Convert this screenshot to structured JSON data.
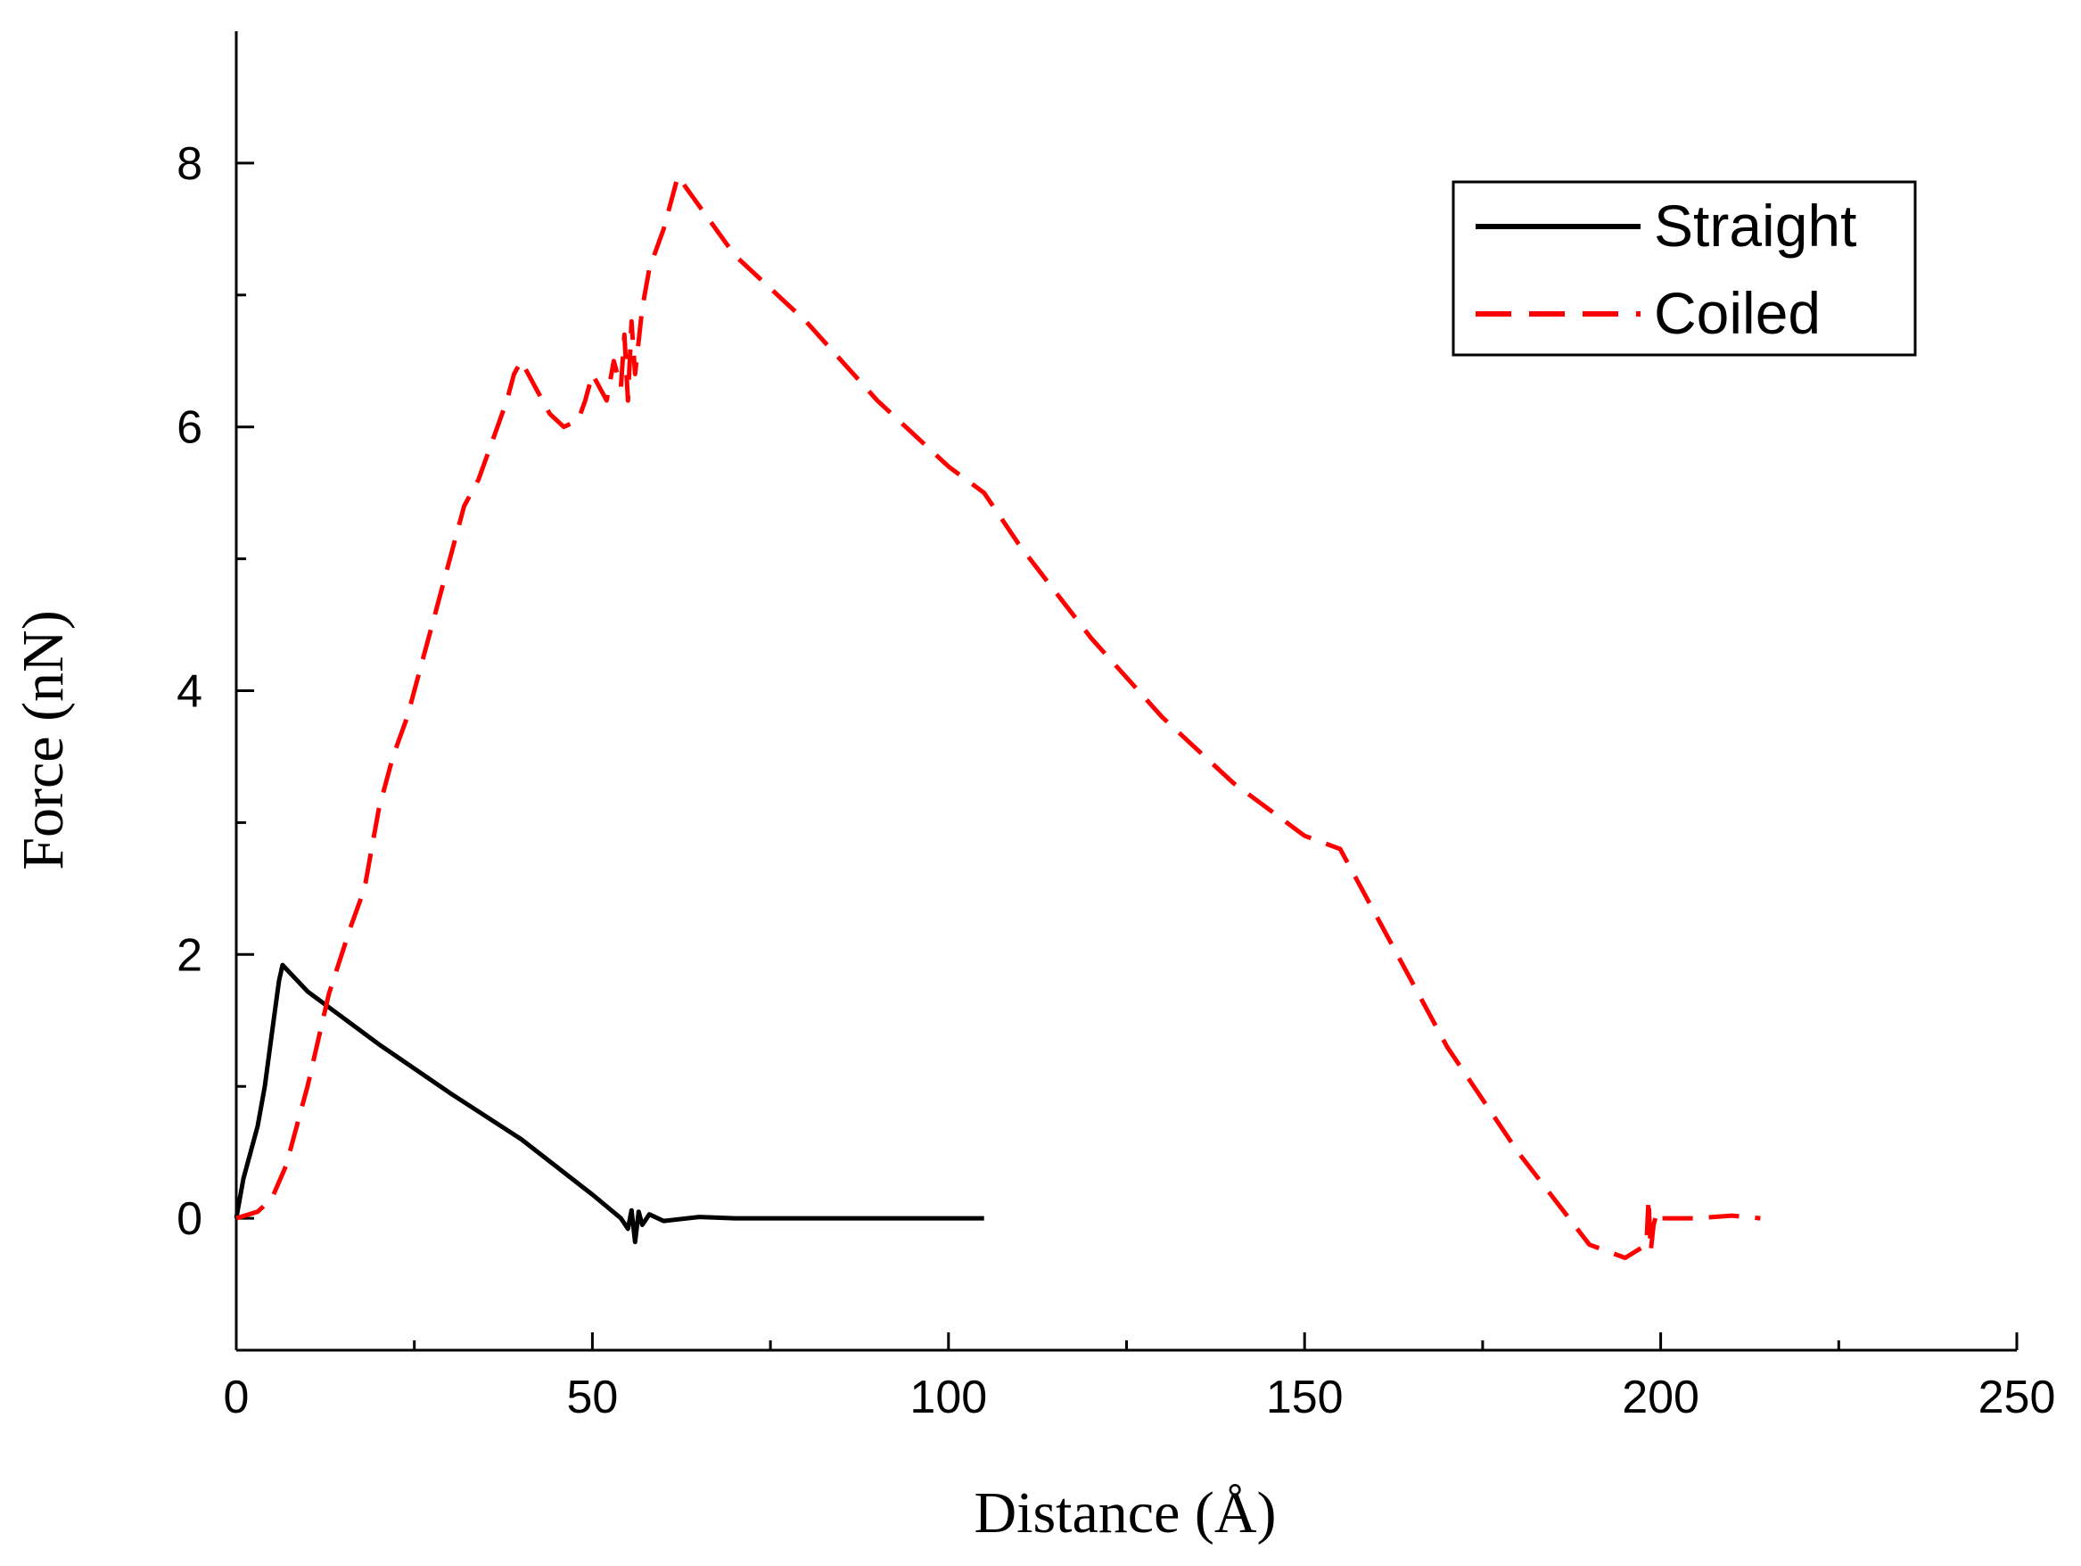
{
  "chart_data": {
    "type": "line",
    "title": "",
    "xlabel": "Distance (Å)",
    "ylabel": "Force (nN)",
    "xlim": [
      0,
      250
    ],
    "ylim": [
      -1,
      9
    ],
    "xticks": [
      0,
      50,
      100,
      150,
      200,
      250
    ],
    "xtick_labels": [
      "0",
      "50",
      "100",
      "150",
      "200",
      "250"
    ],
    "yticks": [
      0,
      2,
      4,
      6,
      8
    ],
    "ytick_labels": [
      "0",
      "2",
      "4",
      "6",
      "8"
    ],
    "grid": false,
    "legend": {
      "position": "top-right",
      "entries": [
        "Straight",
        "Coiled"
      ]
    },
    "series": [
      {
        "name": "Straight",
        "color": "#000000",
        "dash": "solid",
        "x": [
          0,
          1,
          2,
          3,
          4,
          5,
          6,
          6.5,
          10,
          20,
          30,
          40,
          50,
          54,
          55,
          55.5,
          56,
          56.5,
          57,
          58,
          60,
          65,
          70,
          80,
          90,
          100,
          105
        ],
        "y": [
          0,
          0.3,
          0.5,
          0.7,
          1.0,
          1.4,
          1.8,
          1.92,
          1.72,
          1.32,
          0.95,
          0.6,
          0.18,
          0.0,
          -0.08,
          0.06,
          -0.18,
          0.05,
          -0.05,
          0.03,
          -0.02,
          0.01,
          0.0,
          0.0,
          0.0,
          0.0,
          0.0
        ]
      },
      {
        "name": "Coiled",
        "color": "#ff0000",
        "dash": "dashed",
        "x": [
          0,
          3,
          5,
          7,
          10,
          13,
          16,
          18,
          20,
          22,
          24,
          26,
          28,
          30,
          32,
          34,
          36,
          38,
          39,
          40,
          42,
          44,
          46,
          48,
          49,
          50,
          51,
          52,
          53,
          54,
          54.5,
          55,
          55.5,
          56,
          57,
          58,
          60,
          62,
          70,
          80,
          90,
          100,
          105,
          110,
          120,
          130,
          140,
          150,
          155,
          160,
          170,
          180,
          190,
          195,
          198,
          198.3,
          198.6,
          199,
          199.5,
          200,
          205,
          210,
          214
        ],
        "y": [
          0,
          0.05,
          0.15,
          0.4,
          1.0,
          1.7,
          2.2,
          2.5,
          3.1,
          3.5,
          3.8,
          4.2,
          4.6,
          5.0,
          5.4,
          5.6,
          5.9,
          6.2,
          6.4,
          6.5,
          6.3,
          6.1,
          6.0,
          6.05,
          6.2,
          6.4,
          6.3,
          6.2,
          6.5,
          6.3,
          6.7,
          6.2,
          6.8,
          6.4,
          6.9,
          7.2,
          7.5,
          7.9,
          7.3,
          6.8,
          6.2,
          5.7,
          5.5,
          5.1,
          4.4,
          3.8,
          3.3,
          2.9,
          2.8,
          2.3,
          1.3,
          0.5,
          -0.2,
          -0.3,
          -0.2,
          0.15,
          -0.25,
          -0.05,
          0.05,
          0.0,
          0.0,
          0.02,
          0.0
        ]
      }
    ]
  }
}
